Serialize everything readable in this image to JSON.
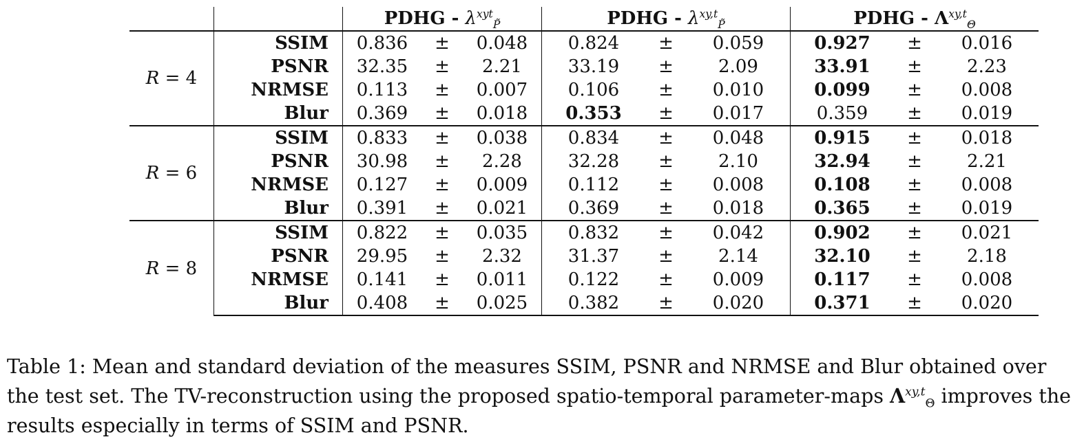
{
  "table": {
    "columns": [
      {
        "method": "PDHG - ",
        "symbol": "λ",
        "sup": "xyt",
        "sub": "P̃"
      },
      {
        "method": "PDHG - ",
        "symbol": "λ",
        "sup": "xy,t",
        "sub": "P̃"
      },
      {
        "method": "PDHG - ",
        "symbol": "Λ",
        "sup": "xy,t",
        "sub": "Θ"
      }
    ],
    "pm": "±",
    "groups": [
      {
        "r_label": "R",
        "r_eq": " = ",
        "r_value": "4",
        "rows": [
          {
            "metric": "SSIM",
            "v": [
              "0.836",
              "0.048",
              "0.824",
              "0.059",
              "0.927",
              "0.016"
            ]
          },
          {
            "metric": "PSNR",
            "v": [
              "32.35",
              "2.21",
              "33.19",
              "2.09",
              "33.91",
              "2.23"
            ]
          },
          {
            "metric": "NRMSE",
            "v": [
              "0.113",
              "0.007",
              "0.106",
              "0.010",
              "0.099",
              "0.008"
            ]
          },
          {
            "metric": "Blur",
            "v": [
              "0.369",
              "0.018",
              "0.353",
              "0.017",
              "0.359",
              "0.019"
            ]
          }
        ]
      },
      {
        "r_label": "R",
        "r_eq": " = ",
        "r_value": "6",
        "rows": [
          {
            "metric": "SSIM",
            "v": [
              "0.833",
              "0.038",
              "0.834",
              "0.048",
              "0.915",
              "0.018"
            ]
          },
          {
            "metric": "PSNR",
            "v": [
              "30.98",
              "2.28",
              "32.28",
              "2.10",
              "32.94",
              "2.21"
            ]
          },
          {
            "metric": "NRMSE",
            "v": [
              "0.127",
              "0.009",
              "0.112",
              "0.008",
              "0.108",
              "0.008"
            ]
          },
          {
            "metric": "Blur",
            "v": [
              "0.391",
              "0.021",
              "0.369",
              "0.018",
              "0.365",
              "0.019"
            ]
          }
        ]
      },
      {
        "r_label": "R",
        "r_eq": " = ",
        "r_value": "8",
        "rows": [
          {
            "metric": "SSIM",
            "v": [
              "0.822",
              "0.035",
              "0.832",
              "0.042",
              "0.902",
              "0.021"
            ]
          },
          {
            "metric": "PSNR",
            "v": [
              "29.95",
              "2.32",
              "31.37",
              "2.14",
              "32.10",
              "2.18"
            ]
          },
          {
            "metric": "NRMSE",
            "v": [
              "0.141",
              "0.011",
              "0.122",
              "0.009",
              "0.117",
              "0.008"
            ]
          },
          {
            "metric": "Blur",
            "v": [
              "0.408",
              "0.025",
              "0.382",
              "0.020",
              "0.371",
              "0.020"
            ]
          }
        ]
      }
    ],
    "bold_cells": [
      [
        [
          0,
          2
        ]
      ],
      [
        [
          1,
          2
        ]
      ],
      [
        [
          2,
          2
        ]
      ],
      [
        [
          3,
          1
        ]
      ],
      [
        [
          0,
          2
        ]
      ],
      [
        [
          1,
          2
        ]
      ],
      [
        [
          2,
          2
        ]
      ],
      [
        [
          3,
          2
        ]
      ],
      [
        [
          0,
          2
        ]
      ],
      [
        [
          1,
          2
        ]
      ],
      [
        [
          2,
          2
        ]
      ],
      [
        [
          3,
          2
        ]
      ]
    ]
  },
  "caption": {
    "part1": "Table 1: Mean and standard deviation of the measures SSIM, PSNR and NRMSE and Blur obtained over the test set. The TV-reconstruction using the proposed spatio-temporal parameter-maps ",
    "symbol": "Λ",
    "sup": "xy,t",
    "sub": "Θ",
    "part2": " improves the results especially in terms of SSIM and PSNR."
  }
}
